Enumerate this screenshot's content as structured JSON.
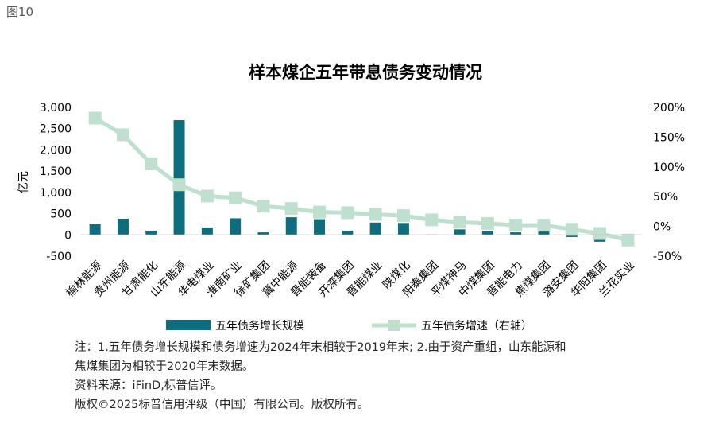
{
  "figure_label": "图10",
  "chart_data": {
    "type": "bar+line",
    "title": "样本煤企五年带息债务变动情况",
    "ylabel": "亿元",
    "ylim": [
      -500,
      3000
    ],
    "yticks": [
      -500,
      0,
      500,
      1000,
      1500,
      2000,
      2500,
      3000
    ],
    "ytick_labels": [
      "-500",
      "0",
      "500",
      "1,000",
      "1,500",
      "2,000",
      "2,500",
      "3,000"
    ],
    "y2lim": [
      -50,
      200
    ],
    "y2ticks": [
      -50,
      0,
      50,
      100,
      150,
      200
    ],
    "y2tick_labels": [
      "-50%",
      "0%",
      "50%",
      "100%",
      "150%",
      "200%"
    ],
    "categories": [
      "榆林能源",
      "贵州能源",
      "甘肃能化",
      "山东能源",
      "华电煤业",
      "淮南矿业",
      "徐矿集团",
      "冀中能源",
      "晋能装备",
      "开滦集团",
      "晋能煤业",
      "陕煤化",
      "阳泰集团",
      "平煤神马",
      "中煤集团",
      "晋能电力",
      "焦煤集团",
      "潞安集团",
      "华阳集团",
      "兰花实业"
    ],
    "series": [
      {
        "name": "五年债务增长规模",
        "type": "bar",
        "axis": "left",
        "color": "#0f6e7d",
        "values": [
          250,
          380,
          100,
          2700,
          175,
          390,
          60,
          415,
          370,
          100,
          290,
          280,
          10,
          130,
          90,
          60,
          80,
          -50,
          -160,
          -20
        ]
      },
      {
        "name": "五年债务增速（右轴）",
        "type": "line",
        "axis": "right",
        "color": "#bfe0cf",
        "values": [
          182,
          154,
          105,
          70,
          51,
          48,
          34,
          30,
          24,
          23,
          20,
          18,
          11,
          7,
          5,
          2,
          2,
          -5,
          -12,
          -23
        ]
      }
    ],
    "legend_position": "bottom"
  },
  "notes": {
    "line1": "注：1.五年债务增长规模和债务增速为2024年末相较于2019年末; 2.由于资产重组，山东能源和",
    "line2": "焦煤集团为相较于2020年末数据。",
    "source": "资料来源：iFinD,标普信评。",
    "copyright": "版权©2025标普信用评级（中国）有限公司。版权所有。"
  }
}
